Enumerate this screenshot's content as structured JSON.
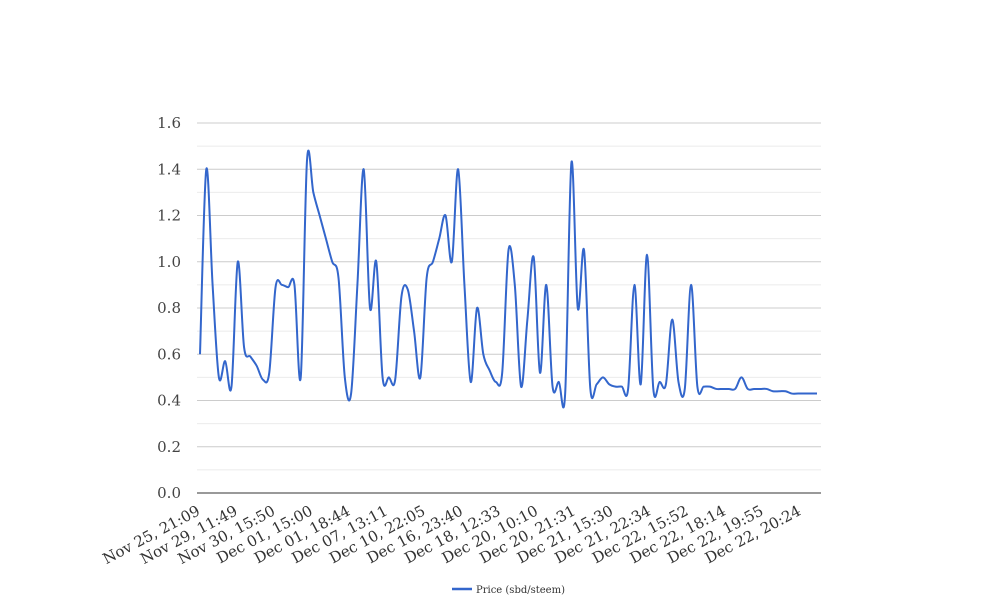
{
  "chart_data": {
    "type": "line",
    "title": "",
    "xlabel": "",
    "ylabel": "",
    "ylim": [
      0,
      1.6
    ],
    "yticks": [
      "0.0",
      "0.2",
      "0.4",
      "0.6",
      "0.8",
      "1.0",
      "1.2",
      "1.4",
      "1.6"
    ],
    "ytick_values": [
      0,
      0.2,
      0.4,
      0.6,
      0.8,
      1.0,
      1.2,
      1.4,
      1.6
    ],
    "xticks": [
      "Nov 25, 21:09",
      "Nov 29, 11:49",
      "Nov 30, 15:50",
      "Dec 01, 15:00",
      "Dec 01, 18:44",
      "Dec 07, 13:11",
      "Dec 10, 22:05",
      "Dec 16, 23:40",
      "Dec 18, 12:33",
      "Dec 20, 10:10",
      "Dec 20, 21:31",
      "Dec 21, 15:30",
      "Dec 21, 22:34",
      "Dec 22, 15:52",
      "Dec 22, 18:14",
      "Dec 22, 19:55",
      "Dec 22, 20:24"
    ],
    "grid": true,
    "legend_position": "bottom",
    "color": "#3366cc",
    "series": [
      {
        "name": "Price (sbd/steem)",
        "values": [
          0.6,
          1.4,
          0.9,
          0.5,
          0.57,
          0.46,
          1.0,
          0.63,
          0.59,
          0.55,
          0.49,
          0.52,
          0.89,
          0.9,
          0.89,
          0.9,
          0.5,
          1.44,
          1.3,
          1.2,
          1.1,
          1.0,
          0.93,
          0.5,
          0.43,
          0.9,
          1.4,
          0.8,
          1.0,
          0.5,
          0.5,
          0.49,
          0.85,
          0.88,
          0.7,
          0.5,
          0.93,
          1.0,
          1.1,
          1.2,
          1.0,
          1.4,
          0.9,
          0.48,
          0.8,
          0.6,
          0.53,
          0.48,
          0.52,
          1.05,
          0.9,
          0.46,
          0.75,
          1.02,
          0.52,
          0.9,
          0.46,
          0.48,
          0.43,
          1.43,
          0.8,
          1.05,
          0.45,
          0.47,
          0.5,
          0.47,
          0.46,
          0.46,
          0.45,
          0.9,
          0.47,
          1.03,
          0.45,
          0.48,
          0.47,
          0.75,
          0.48,
          0.45,
          0.9,
          0.46,
          0.46,
          0.46,
          0.45,
          0.45,
          0.45,
          0.45,
          0.5,
          0.45,
          0.45,
          0.45,
          0.45,
          0.44,
          0.44,
          0.44,
          0.43,
          0.43,
          0.43,
          0.43,
          0.43
        ]
      }
    ]
  }
}
